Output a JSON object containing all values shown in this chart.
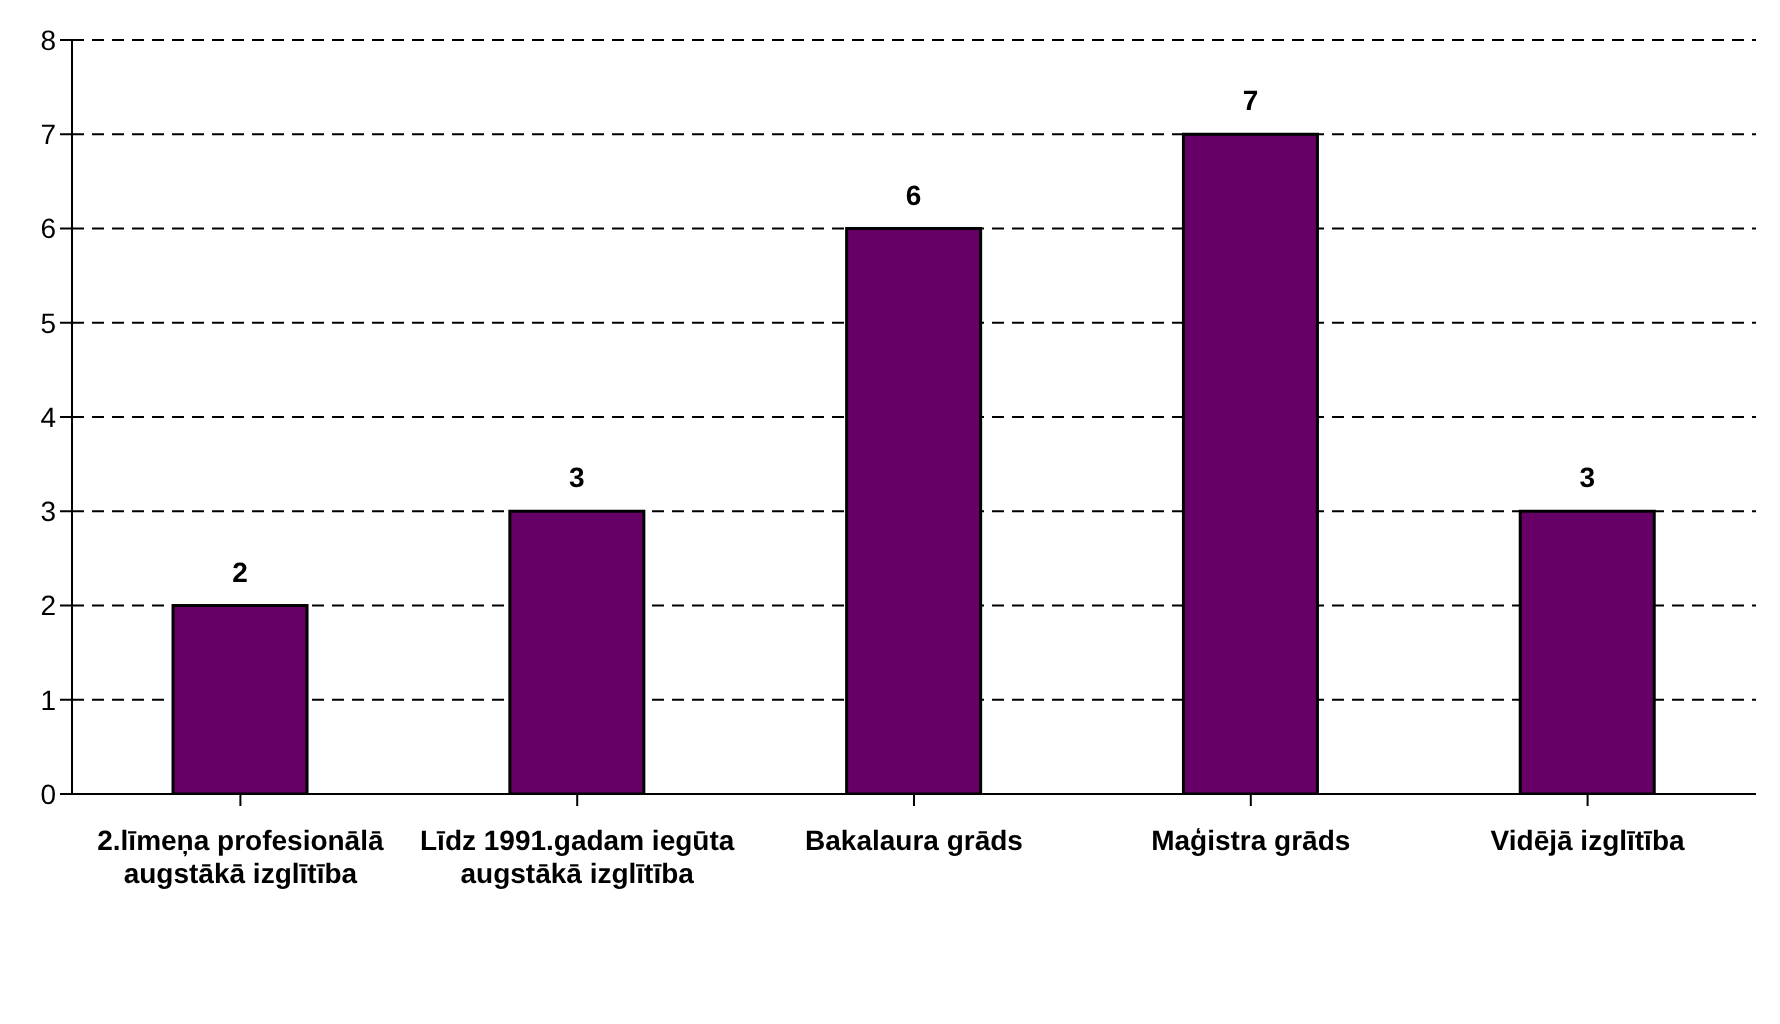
{
  "chart_data": {
    "type": "bar",
    "categories": [
      "2.līmeņa profesionālā augstākā izglītība",
      "Līdz 1991.gadam iegūta augstākā izglītība",
      "Bakalaura grāds",
      "Maģistra grāds",
      "Vidējā izglītība"
    ],
    "values": [
      2,
      3,
      6,
      7,
      3
    ],
    "color": "#660066",
    "ylim": [
      0,
      8
    ],
    "yticks": [
      0,
      1,
      2,
      3,
      4,
      5,
      6,
      7,
      8
    ],
    "grid": "y",
    "data_labels": true,
    "legend": false
  }
}
